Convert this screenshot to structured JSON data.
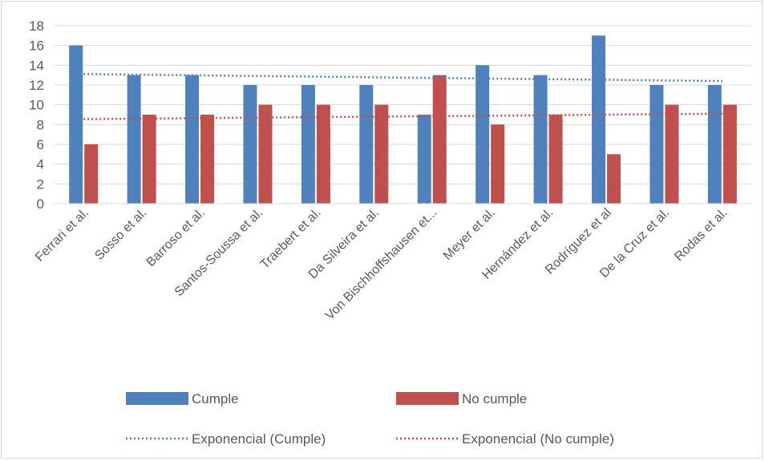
{
  "chart_data": {
    "type": "bar",
    "title": "",
    "xlabel": "",
    "ylabel": "",
    "ylim": [
      0,
      18
    ],
    "yticks": [
      0,
      2,
      4,
      6,
      8,
      10,
      12,
      14,
      16,
      18
    ],
    "grid": true,
    "legend_position": "bottom",
    "categories": [
      "Ferrari et al.",
      "Sosso et al.",
      "Barroso et al.",
      "Santos-Soussa et al.",
      "Traebert et al.",
      "Da Silveira et al.",
      "Von Bischhoffshausen et...",
      "Meyer et al.",
      "Hernández et al.",
      "Rodríguez et al",
      "De la Cruz et al.",
      "Rodas et al."
    ],
    "series": [
      {
        "name": "Cumple",
        "color": "#4f81bd",
        "values": [
          16,
          13,
          13,
          12,
          12,
          12,
          9,
          14,
          13,
          17,
          12,
          12
        ]
      },
      {
        "name": "No cumple",
        "color": "#c0504d",
        "values": [
          6,
          9,
          9,
          10,
          10,
          10,
          13,
          8,
          9,
          5,
          10,
          10
        ]
      }
    ],
    "trendlines": [
      {
        "name": "Exponencial (Cumple)",
        "color": "#4f81bd",
        "start": 13.1,
        "end": 12.4
      },
      {
        "name": "Exponencial (No cumple)",
        "color": "#c0504d",
        "start": 8.55,
        "end": 9.1
      }
    ]
  }
}
